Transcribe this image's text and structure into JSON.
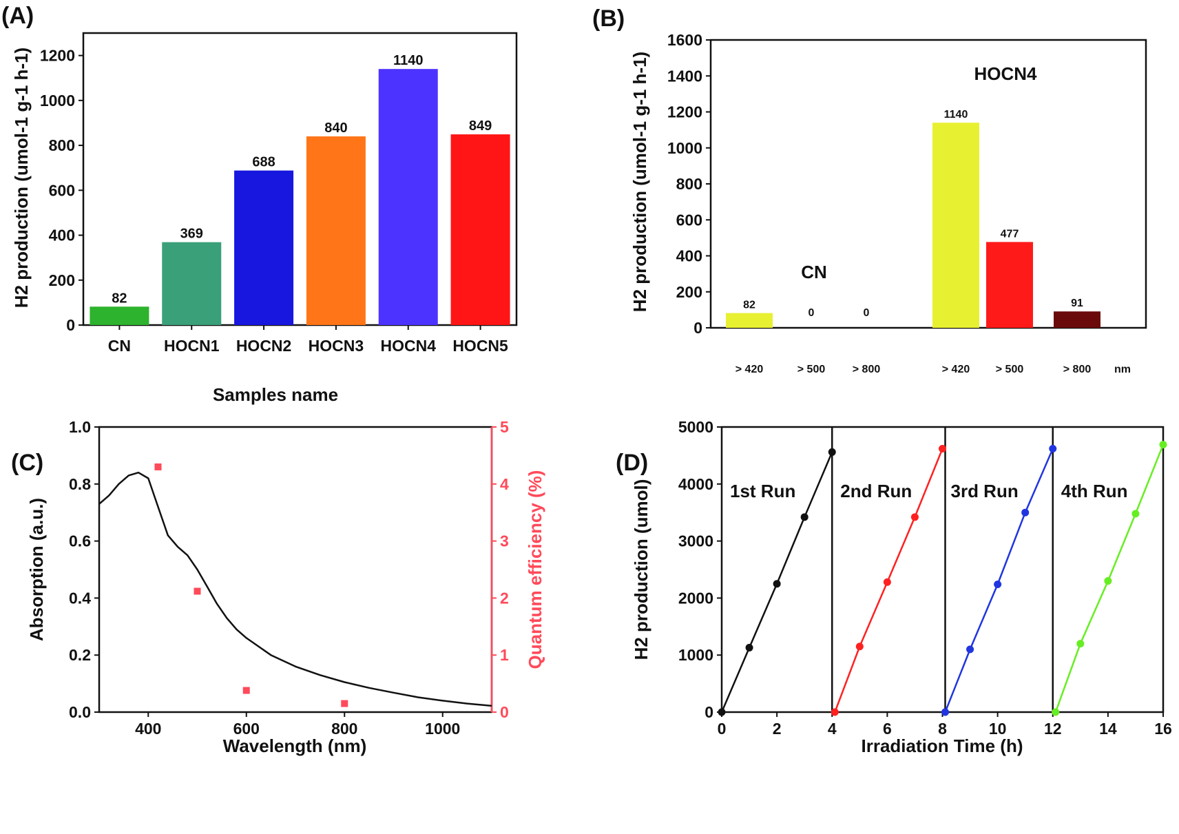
{
  "chart_data": [
    {
      "panel_label": "(A)",
      "type": "bar",
      "xlabel": "Samples name",
      "ylabel": "H2 production (umol-1 g-1 h-1)",
      "ylim": [
        0,
        1300
      ],
      "yticks": [
        0,
        200,
        400,
        600,
        800,
        1000,
        1200
      ],
      "categories": [
        "CN",
        "HOCN1",
        "HOCN2",
        "HOCN3",
        "HOCN4",
        "HOCN5"
      ],
      "values": [
        82,
        369,
        688,
        840,
        1140,
        849
      ],
      "data_labels": [
        "82",
        "369",
        "688",
        "840",
        "1140",
        "849"
      ],
      "colors": [
        "#2db32d",
        "#3aa07a",
        "#1717e0",
        "#ff7518",
        "#4d33ff",
        "#ff1515"
      ]
    },
    {
      "panel_label": "(B)",
      "type": "bar",
      "xlabel": "",
      "x_unit": "nm",
      "ylabel": "H2 production (umol-1 g-1 h-1)",
      "ylim": [
        0,
        1600
      ],
      "yticks": [
        0,
        200,
        400,
        600,
        800,
        1000,
        1200,
        1400,
        1600
      ],
      "group_labels": [
        "CN",
        "HOCN4"
      ],
      "categories": [
        "> 420",
        "> 500",
        "> 800",
        "> 420",
        "> 500",
        "> 800"
      ],
      "values": [
        82,
        0,
        0,
        1140,
        477,
        91
      ],
      "data_labels": [
        "82",
        "0",
        "0",
        "1140",
        "477",
        "91"
      ],
      "colors": [
        "#e8f032",
        "#e8f032",
        "#e8f032",
        "#e8f032",
        "#ff1a1a",
        "#6b0a0a"
      ]
    },
    {
      "panel_label": "(C)",
      "type": "line",
      "xlabel": "Wavelength (nm)",
      "ylabel": "Absorption (a.u.)",
      "y2label": "Quantum efficiency (%)",
      "xlim": [
        300,
        1100
      ],
      "ylim": [
        0,
        1.0
      ],
      "y2lim": [
        0,
        5
      ],
      "xticks": [
        400,
        600,
        800,
        1000
      ],
      "yticks": [
        0.0,
        0.2,
        0.4,
        0.6,
        0.8,
        1.0
      ],
      "ytick_labels": [
        "0.0",
        "0.2",
        "0.4",
        "0.6",
        "0.8",
        "1.0"
      ],
      "y2ticks": [
        0,
        1,
        2,
        3,
        4,
        5
      ],
      "absorption": {
        "x": [
          300,
          320,
          340,
          360,
          380,
          400,
          420,
          440,
          460,
          480,
          500,
          520,
          540,
          560,
          580,
          600,
          650,
          700,
          750,
          800,
          850,
          900,
          950,
          1000,
          1050,
          1100
        ],
        "y": [
          0.73,
          0.76,
          0.8,
          0.83,
          0.84,
          0.82,
          0.72,
          0.62,
          0.58,
          0.55,
          0.5,
          0.44,
          0.38,
          0.33,
          0.29,
          0.26,
          0.2,
          0.16,
          0.13,
          0.105,
          0.085,
          0.068,
          0.052,
          0.04,
          0.03,
          0.022
        ],
        "color": "#111111"
      },
      "quantum_efficiency": {
        "x": [
          420,
          500,
          600,
          800
        ],
        "y": [
          4.3,
          2.12,
          0.38,
          0.15
        ],
        "color": "#ff4a5a"
      }
    },
    {
      "panel_label": "(D)",
      "type": "line",
      "xlabel": "Irradiation Time (h)",
      "ylabel": "H2 production (umol)",
      "xlim": [
        0,
        16
      ],
      "ylim": [
        0,
        5000
      ],
      "xticks": [
        0,
        2,
        4,
        6,
        8,
        10,
        12,
        14,
        16
      ],
      "yticks": [
        0,
        1000,
        2000,
        3000,
        4000,
        5000
      ],
      "run_dividers": [
        4,
        8.1,
        12
      ],
      "series": [
        {
          "name": "1st Run",
          "color": "#111111",
          "x": [
            0,
            1,
            2,
            3,
            4
          ],
          "y": [
            0,
            1130,
            2250,
            3420,
            4560
          ]
        },
        {
          "name": "2nd Run",
          "color": "#ff2020",
          "x": [
            4.1,
            5,
            6,
            7,
            8
          ],
          "y": [
            0,
            1150,
            2280,
            3420,
            4620
          ]
        },
        {
          "name": "3rd Run",
          "color": "#2035e0",
          "x": [
            8.1,
            9,
            10,
            11,
            12
          ],
          "y": [
            0,
            1100,
            2240,
            3500,
            4620
          ]
        },
        {
          "name": "4th Run",
          "color": "#66ee22",
          "x": [
            12.1,
            13,
            14,
            15,
            16
          ],
          "y": [
            0,
            1200,
            2300,
            3480,
            4690
          ]
        }
      ]
    }
  ]
}
